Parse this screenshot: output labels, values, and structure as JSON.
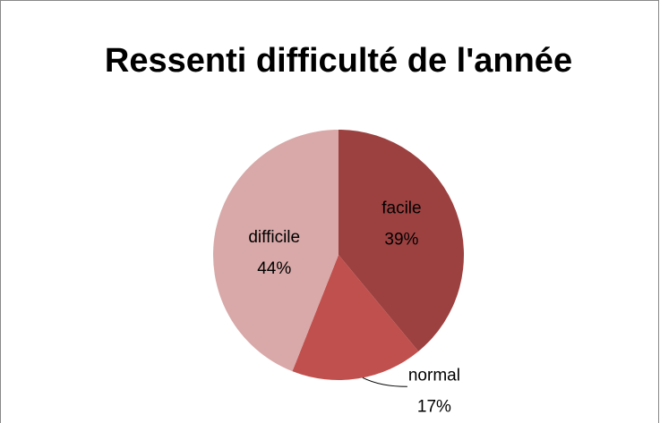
{
  "chart_data": {
    "type": "pie",
    "title": "Ressenti difficulté de l'année",
    "categories": [
      "facile",
      "normal",
      "difficile"
    ],
    "values": [
      39,
      17,
      44
    ],
    "value_labels": [
      "39%",
      "17%",
      "44%"
    ],
    "colors": [
      "#9c4140",
      "#c0504d",
      "#d8a9a8"
    ]
  }
}
